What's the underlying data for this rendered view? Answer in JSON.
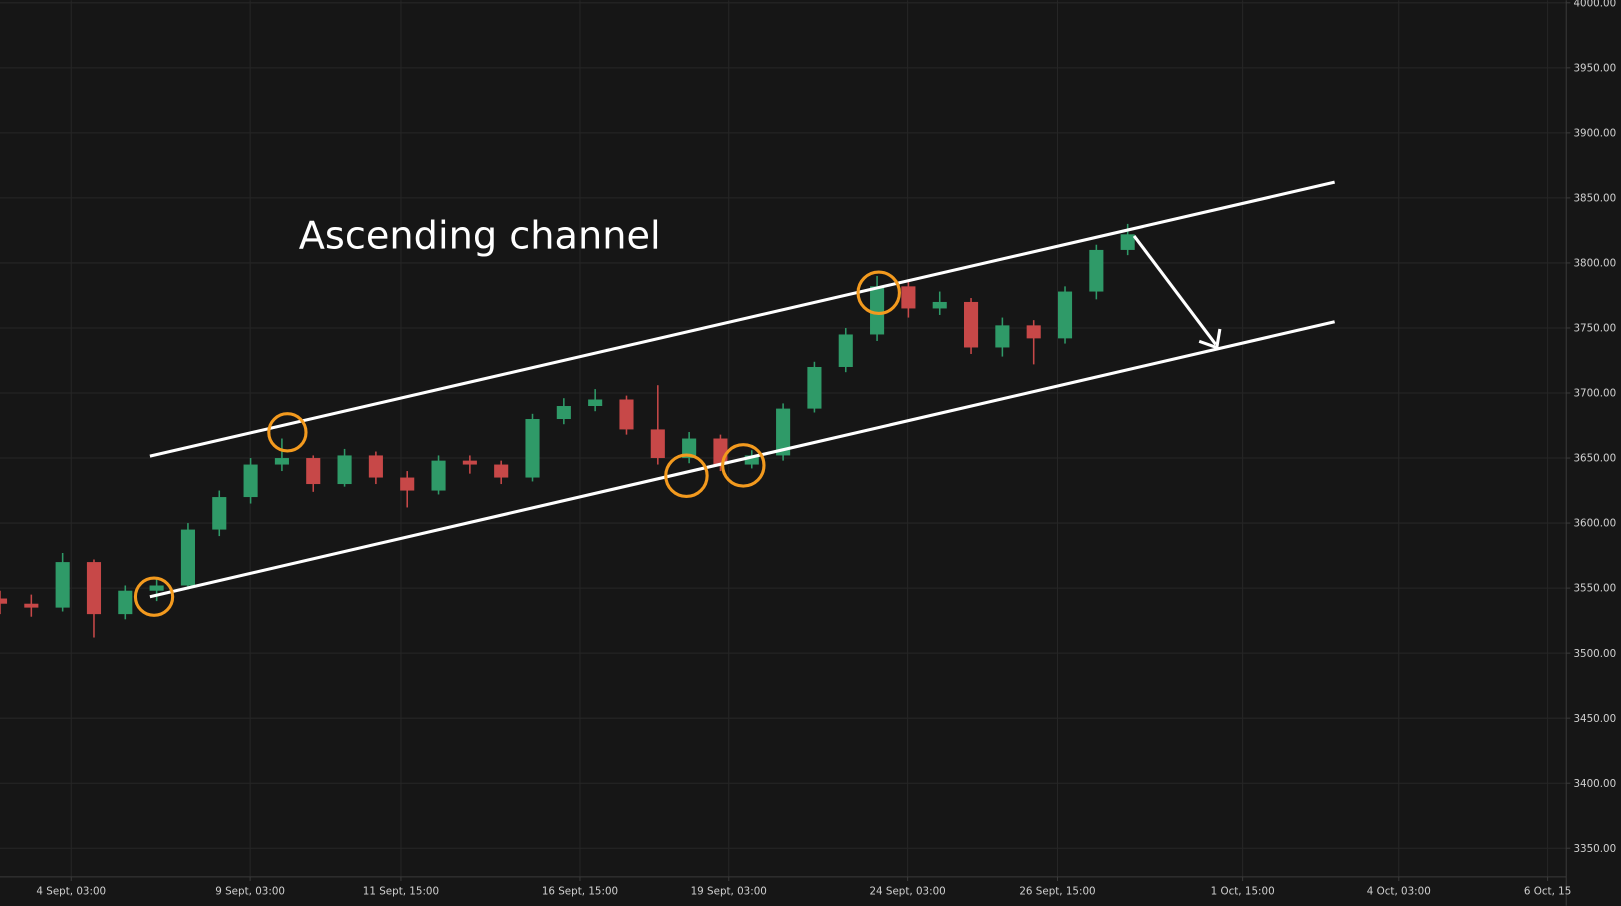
{
  "chart_data": {
    "type": "candlestick",
    "title": "Ascending channel",
    "x": [
      0,
      2,
      4,
      6,
      8,
      10,
      12,
      14,
      16,
      18,
      20,
      22,
      24,
      26,
      28,
      30,
      32,
      34,
      36,
      38,
      40,
      42,
      44,
      46,
      48,
      50,
      52,
      54,
      56,
      58,
      60,
      62,
      64,
      66,
      68,
      70,
      72
    ],
    "open": [
      3542,
      3538,
      3535,
      3570,
      3530,
      3548,
      3552,
      3595,
      3620,
      3645,
      3650,
      3630,
      3652,
      3635,
      3625,
      3648,
      3645,
      3635,
      3680,
      3690,
      3695,
      3672,
      3650,
      3665,
      3645,
      3652,
      3688,
      3720,
      3745,
      3782,
      3765,
      3770,
      3735,
      3752,
      3742,
      3778,
      3810
    ],
    "high": [
      3548,
      3545,
      3577,
      3572,
      3552,
      3558,
      3600,
      3625,
      3650,
      3665,
      3652,
      3657,
      3655,
      3640,
      3652,
      3652,
      3648,
      3684,
      3696,
      3703,
      3698,
      3706,
      3670,
      3668,
      3656,
      3692,
      3724,
      3750,
      3790,
      3786,
      3778,
      3773,
      3758,
      3756,
      3782,
      3814,
      3830
    ],
    "low": [
      3530,
      3528,
      3532,
      3512,
      3526,
      3540,
      3549,
      3590,
      3615,
      3640,
      3624,
      3628,
      3630,
      3612,
      3622,
      3638,
      3630,
      3632,
      3676,
      3686,
      3668,
      3645,
      3646,
      3640,
      3642,
      3648,
      3685,
      3716,
      3740,
      3758,
      3760,
      3730,
      3728,
      3722,
      3738,
      3772,
      3806
    ],
    "close": [
      3538,
      3535,
      3570,
      3530,
      3548,
      3552,
      3595,
      3620,
      3645,
      3650,
      3630,
      3652,
      3635,
      3625,
      3648,
      3645,
      3635,
      3680,
      3690,
      3695,
      3672,
      3650,
      3665,
      3645,
      3652,
      3688,
      3720,
      3745,
      3782,
      3765,
      3770,
      3735,
      3752,
      3742,
      3778,
      3810,
      3822
    ],
    "up_color": "#2f9a68",
    "down_color": "#c74848",
    "xlim": [
      0,
      100
    ],
    "xticks": [
      {
        "value": 4.55,
        "label": "4 Sept, 03:00"
      },
      {
        "value": 15.97,
        "label": "9 Sept, 03:00"
      },
      {
        "value": 25.6,
        "label": "11 Sept, 15:00"
      },
      {
        "value": 37.03,
        "label": "16 Sept, 15:00"
      },
      {
        "value": 46.53,
        "label": "19 Sept, 03:00"
      },
      {
        "value": 57.95,
        "label": "24 Sept, 03:00"
      },
      {
        "value": 67.52,
        "label": "26 Sept, 15:00"
      },
      {
        "value": 79.34,
        "label": "1 Oct, 15:00"
      },
      {
        "value": 89.31,
        "label": "4 Oct, 03:00"
      },
      {
        "value": 98.81,
        "label": "6 Oct, 15"
      }
    ],
    "ylim": [
      3328,
      4002
    ],
    "yticks": [
      {
        "value": 3350,
        "label": "3350.00"
      },
      {
        "value": 3400,
        "label": "3400.00"
      },
      {
        "value": 3450,
        "label": "3450.00"
      },
      {
        "value": 3500,
        "label": "3500.00"
      },
      {
        "value": 3550,
        "label": "3550.00"
      },
      {
        "value": 3600,
        "label": "3600.00"
      },
      {
        "value": 3650,
        "label": "3650.00"
      },
      {
        "value": 3700,
        "label": "3700.00"
      },
      {
        "value": 3750,
        "label": "3750.00"
      },
      {
        "value": 3800,
        "label": "3800.00"
      },
      {
        "value": 3850,
        "label": "3850.00"
      },
      {
        "value": 3900,
        "label": "3900.00"
      },
      {
        "value": 3950,
        "label": "3950.00"
      },
      {
        "value": 4000,
        "label": "4000.00"
      }
    ],
    "grid": true
  }
}
